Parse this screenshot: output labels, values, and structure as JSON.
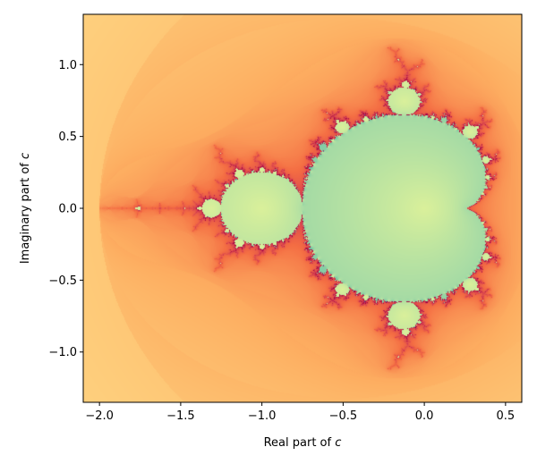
{
  "chart_data": {
    "type": "heatmap",
    "title": "",
    "xlabel_prefix": "Real part of ",
    "xlabel_var": "c",
    "ylabel_prefix": "Imaginary part of ",
    "ylabel_var": "c",
    "xlim": [
      -2.1,
      0.6
    ],
    "ylim": [
      -1.35,
      1.35
    ],
    "xticks": [
      -2.0,
      -1.5,
      -1.0,
      -0.5,
      0.0,
      0.5
    ],
    "xtick_labels": [
      "−2.0",
      "−1.5",
      "−1.0",
      "−0.5",
      "0.0",
      "0.5"
    ],
    "yticks": [
      -1.0,
      -0.5,
      0.0,
      0.5,
      1.0
    ],
    "ytick_labels": [
      "−1.0",
      "−0.5",
      "0.0",
      "0.5",
      "1.0"
    ],
    "grid": false,
    "colormap": "Spectral",
    "colormap_stops": [
      "#9e0142",
      "#d53e4f",
      "#f46d43",
      "#fdae61",
      "#fee08b",
      "#ffffbf",
      "#e6f598",
      "#abdda4",
      "#66c2a5",
      "#3288bd",
      "#5e4fa2"
    ],
    "set": "Mandelbrot",
    "max_iterations": 120
  }
}
